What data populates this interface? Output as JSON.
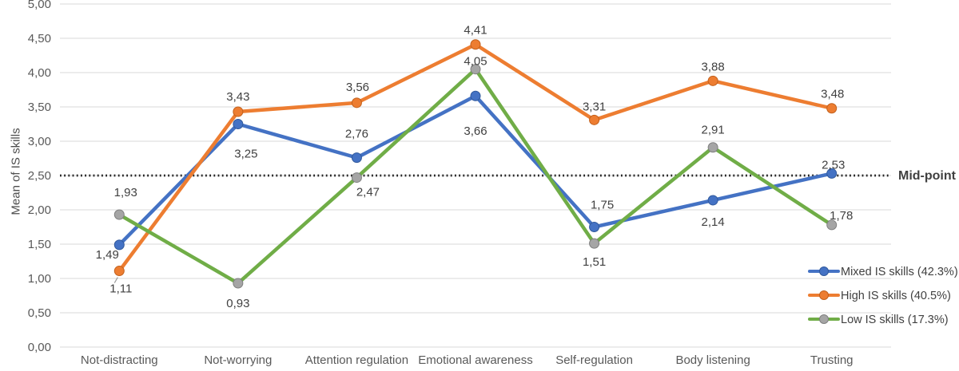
{
  "chart_data": {
    "type": "line",
    "title": "",
    "ylabel": "Mean of IS skills",
    "xlabel": "",
    "ylim": [
      0,
      5
    ],
    "ytick_step": 0.5,
    "ytick_labels": [
      "0,00",
      "0,50",
      "1,00",
      "1,50",
      "2,00",
      "2,50",
      "3,00",
      "3,50",
      "4,00",
      "4,50",
      "5,00"
    ],
    "grid": true,
    "legend_position": "bottom-right",
    "categories": [
      "Not-distracting",
      "Not-worrying",
      "Attention regulation",
      "Emotional awareness",
      "Self-regulation",
      "Body listening",
      "Trusting"
    ],
    "series": [
      {
        "name": "Mixed IS skills (42.3%)",
        "color": "#4472C4",
        "marker_color": "#4472C4",
        "marker_stroke": "#30599c",
        "values": [
          1.49,
          3.25,
          2.76,
          3.66,
          1.75,
          2.14,
          2.53
        ],
        "labels": [
          "1,49",
          "3,25",
          "2,76",
          "3,66",
          "1,75",
          "2,14",
          "2,53"
        ],
        "label_offsets": [
          [
            -15,
            12
          ],
          [
            10,
            37
          ],
          [
            0,
            -30
          ],
          [
            0,
            44
          ],
          [
            10,
            -28
          ],
          [
            0,
            27
          ],
          [
            2,
            -11
          ]
        ],
        "leader_index": null
      },
      {
        "name": "High IS skills (40.5%)",
        "color": "#ED7D31",
        "marker_color": "#ED7D31",
        "marker_stroke": "#c2601c",
        "values": [
          1.11,
          3.43,
          3.56,
          4.41,
          3.31,
          3.88,
          3.48
        ],
        "labels": [
          "1,11",
          "3,43",
          "3,56",
          "4,41",
          "3,31",
          "3,88",
          "3,48"
        ],
        "label_offsets": [
          [
            2,
            22
          ],
          [
            0,
            -19
          ],
          [
            1,
            -20
          ],
          [
            0,
            -18
          ],
          [
            0,
            -17
          ],
          [
            0,
            -18
          ],
          [
            1,
            -18
          ]
        ],
        "leader_index": 0
      },
      {
        "name": "Low IS skills (17.3%)",
        "color": "#70AD47",
        "marker_color": "#A5A5A5",
        "marker_stroke": "#7f7f7f",
        "values": [
          1.93,
          0.93,
          2.47,
          4.05,
          1.51,
          2.91,
          1.78
        ],
        "labels": [
          "1,93",
          "0,93",
          "2,47",
          "4,05",
          "1,51",
          "2,91",
          "1,78"
        ],
        "label_offsets": [
          [
            8,
            -28
          ],
          [
            0,
            25
          ],
          [
            14,
            18
          ],
          [
            0,
            -10
          ],
          [
            0,
            23
          ],
          [
            0,
            -22
          ],
          [
            12,
            -12
          ]
        ],
        "leader_index": null
      }
    ],
    "reference_line": {
      "value": 2.5,
      "label": "Mid-point",
      "style": "dotted",
      "color": "#1f1f1f"
    },
    "colors": {
      "grid": "#D9D9D9",
      "axis_text": "#595959",
      "data_label": "#404040",
      "legend_text": "#404040",
      "background": "#FFFFFF",
      "leader": "#9b9b9b"
    }
  }
}
